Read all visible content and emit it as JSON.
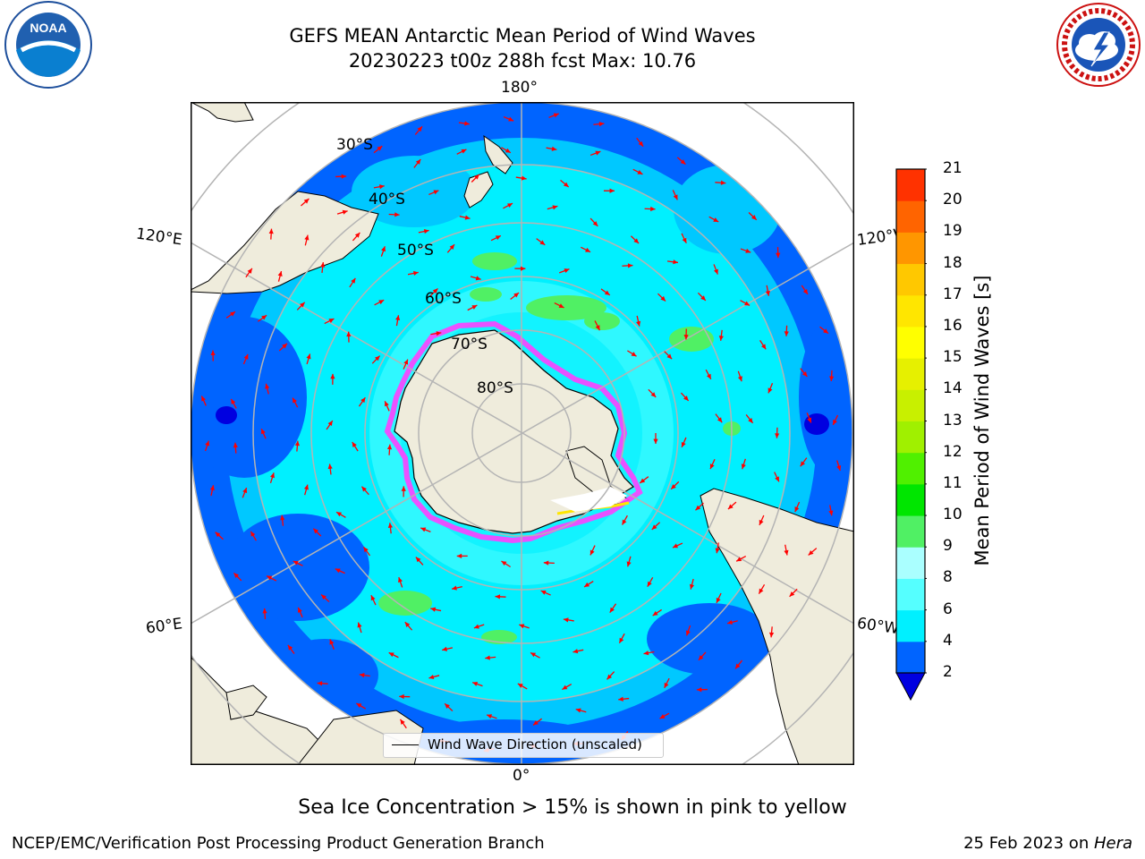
{
  "header": {
    "title_line1": "GEFS MEAN Antarctic Mean Period of Wind Waves",
    "title_line2": "20230223 t00z 288h fcst   Max: 10.76"
  },
  "logos": {
    "left": {
      "name": "noaa-logo",
      "text": "NOAA",
      "ring_text": "NATIONAL OCEANIC AND ATMOSPHERIC ADMINISTRATION · U.S. DEPARTMENT OF COMMERCE"
    },
    "right": {
      "name": "nws-logo",
      "ring_text": "NATIONAL WEATHER SERVICE"
    }
  },
  "map": {
    "projection": "south-polar-stereographic",
    "longitude_labels": {
      "top": "180°",
      "bottom": "0°",
      "left_upper": "120°E",
      "left_lower": "60°E",
      "right_upper": "120°W",
      "right_lower": "60°W"
    },
    "latitude_labels": [
      "30°S",
      "40°S",
      "50°S",
      "60°S",
      "70°S",
      "80°S"
    ],
    "legend_label": "Wind Wave Direction (unscaled)",
    "colors": {
      "land": "#efecdc",
      "ocean_base": "#00f0ff",
      "sea_ice": "#ff40ff",
      "arrows": "#ff0000",
      "grid": "#b4b4b4"
    }
  },
  "colorbar": {
    "label": "Mean Period of Wind Waves [s]",
    "ticks": [
      "2",
      "4",
      "6",
      "8",
      "9",
      "10",
      "11",
      "12",
      "13",
      "14",
      "15",
      "16",
      "17",
      "18",
      "19",
      "20",
      "21"
    ],
    "colors": [
      "#0064ff",
      "#00c8ff",
      "#00f0ff",
      "#55ffff",
      "#aaffff",
      "#50f064",
      "#00e600",
      "#50f000",
      "#a0f000",
      "#c8f000",
      "#e6f000",
      "#ffff00",
      "#ffe600",
      "#ffc800",
      "#ff9600",
      "#ff6400",
      "#ff3200",
      "#ff0000"
    ],
    "extend_below_color": "#0000e0"
  },
  "caption": "Sea Ice Concentration > 15% is shown in pink to yellow",
  "footer": {
    "left": "NCEP/EMC/Verification Post Processing Product Generation Branch",
    "right_prefix": "25 Feb 2023 on ",
    "right_host": "Hera"
  }
}
